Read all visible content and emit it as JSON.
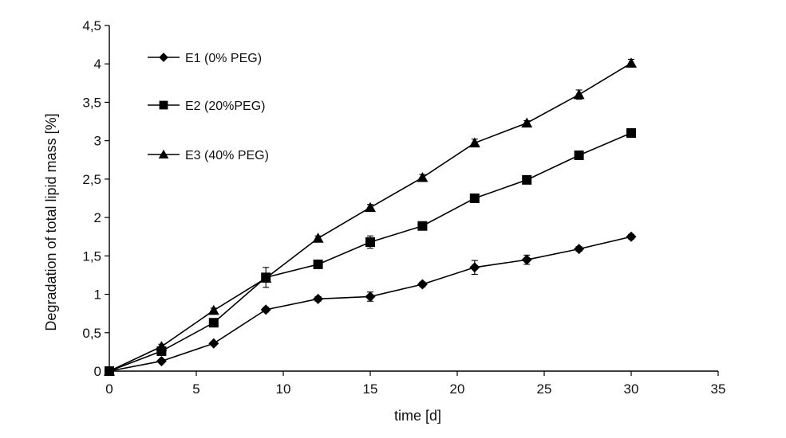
{
  "colors": {
    "line": "#000000",
    "text": "#111111",
    "background": "#ffffff"
  },
  "chart_data": {
    "type": "line",
    "title": "",
    "xlabel": "time [d]",
    "ylabel": "Degradation of total lipid mass [%]",
    "xlim": [
      0,
      35
    ],
    "ylim": [
      0,
      4.5
    ],
    "x_ticks": [
      0,
      5,
      10,
      15,
      20,
      25,
      30,
      35
    ],
    "x_tick_labels": [
      "0",
      "5",
      "10",
      "15",
      "20",
      "25",
      "30",
      "35"
    ],
    "y_ticks": [
      0,
      0.5,
      1,
      1.5,
      2,
      2.5,
      3,
      3.5,
      4,
      4.5
    ],
    "y_tick_labels": [
      "0",
      "0,5",
      "1",
      "1,5",
      "2",
      "2,5",
      "3",
      "3,5",
      "4",
      "4,5"
    ],
    "grid": false,
    "legend_position": "top-left",
    "series": [
      {
        "name": "E1 (0% PEG)",
        "marker": "diamond",
        "x": [
          0,
          3,
          6,
          9,
          12,
          15,
          18,
          21,
          24,
          27,
          30
        ],
        "values": [
          0,
          0.13,
          0.36,
          0.8,
          0.94,
          0.97,
          1.13,
          1.35,
          1.45,
          1.59,
          1.75
        ],
        "errors": [
          0,
          0.02,
          0.02,
          0.03,
          0.03,
          0.06,
          0.03,
          0.09,
          0.06,
          0.03,
          0.03
        ]
      },
      {
        "name": "E2 (20%PEG)",
        "marker": "square",
        "x": [
          0,
          3,
          6,
          9,
          12,
          15,
          18,
          21,
          24,
          27,
          30
        ],
        "values": [
          0,
          0.26,
          0.63,
          1.22,
          1.39,
          1.68,
          1.89,
          2.25,
          2.49,
          2.81,
          3.1
        ],
        "errors": [
          0,
          0.03,
          0.03,
          0.13,
          0.03,
          0.08,
          0.04,
          0.04,
          0.03,
          0.03,
          0.03
        ]
      },
      {
        "name": "E3 (40% PEG)",
        "marker": "triangle",
        "x": [
          0,
          3,
          6,
          9,
          12,
          15,
          18,
          21,
          24,
          27,
          30
        ],
        "values": [
          0,
          0.32,
          0.79,
          1.21,
          1.73,
          2.13,
          2.52,
          2.97,
          3.23,
          3.6,
          4.01
        ],
        "errors": [
          0,
          0.03,
          0.03,
          0.05,
          0.03,
          0.04,
          0.04,
          0.05,
          0.03,
          0.06,
          0.05
        ]
      }
    ]
  }
}
